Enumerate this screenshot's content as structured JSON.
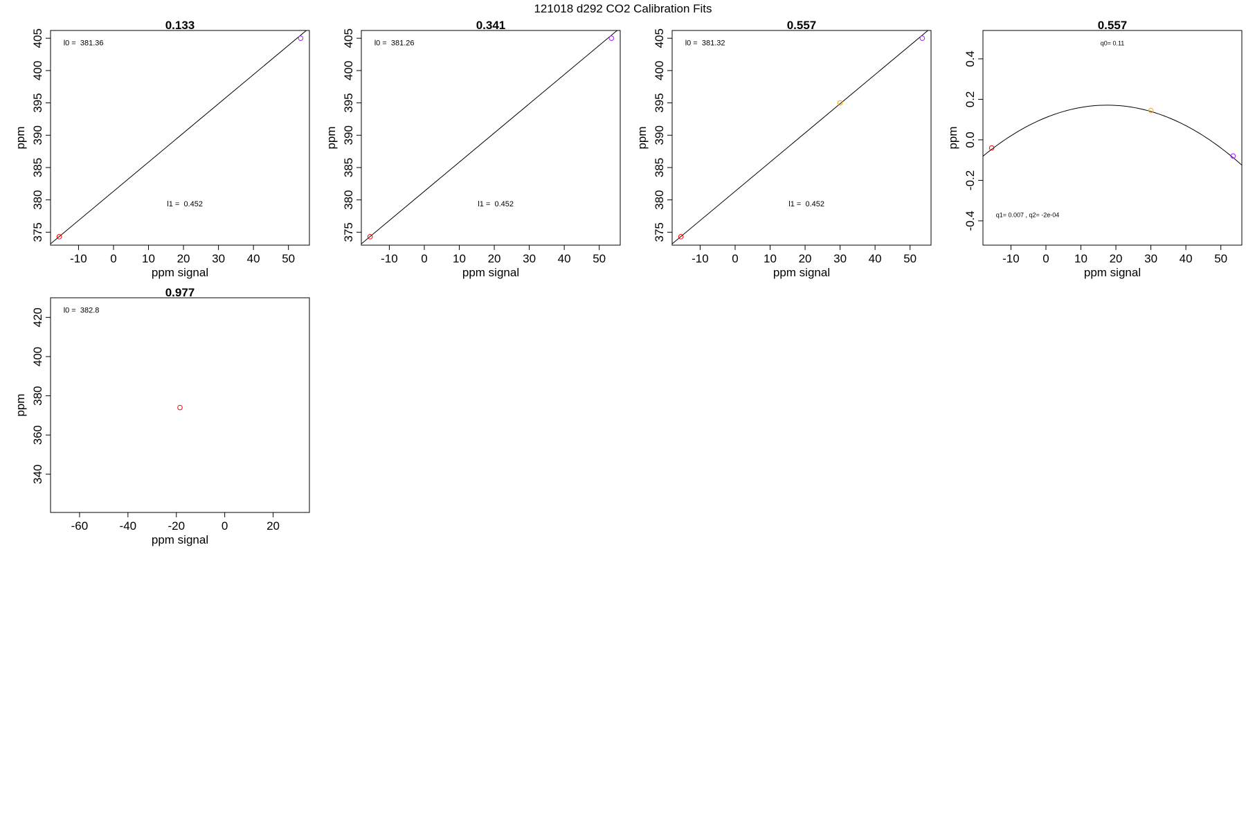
{
  "figure": {
    "title": "121018   d292   CO2 Calibration Fits"
  },
  "chart_data": [
    {
      "type": "scatter",
      "title": "0.133",
      "xlabel": "ppm signal",
      "ylabel": "ppm",
      "xlim": [
        -18,
        56
      ],
      "ylim": [
        373,
        406.2
      ],
      "xticks": [
        -10,
        0,
        10,
        20,
        30,
        40,
        50
      ],
      "yticks": [
        375,
        380,
        385,
        390,
        395,
        400,
        405
      ],
      "grid": false,
      "annotations": [
        "l0 =  381.36",
        "l1 =  0.452"
      ],
      "points": [
        {
          "x": -15.5,
          "y": 374.3,
          "color": "#ff0000"
        },
        {
          "x": 53.5,
          "y": 405.0,
          "color": "#a020f0"
        }
      ],
      "fit": {
        "kind": "linear",
        "x": [
          -18,
          56
        ],
        "y": [
          373.2,
          406.6
        ]
      }
    },
    {
      "type": "scatter",
      "title": "0.341",
      "xlabel": "ppm signal",
      "ylabel": "ppm",
      "xlim": [
        -18,
        56
      ],
      "ylim": [
        373,
        406.2
      ],
      "xticks": [
        -10,
        0,
        10,
        20,
        30,
        40,
        50
      ],
      "yticks": [
        375,
        380,
        385,
        390,
        395,
        400,
        405
      ],
      "grid": false,
      "annotations": [
        "l0 =  381.26",
        "l1 =  0.452"
      ],
      "points": [
        {
          "x": -15.5,
          "y": 374.3,
          "color": "#ff0000"
        },
        {
          "x": 53.5,
          "y": 405.0,
          "color": "#a020f0"
        }
      ],
      "fit": {
        "kind": "linear",
        "x": [
          -18,
          56
        ],
        "y": [
          373.2,
          406.6
        ]
      }
    },
    {
      "type": "scatter",
      "title": "0.557",
      "xlabel": "ppm signal",
      "ylabel": "ppm",
      "xlim": [
        -18,
        56
      ],
      "ylim": [
        373,
        406.2
      ],
      "xticks": [
        -10,
        0,
        10,
        20,
        30,
        40,
        50
      ],
      "yticks": [
        375,
        380,
        385,
        390,
        395,
        400,
        405
      ],
      "grid": false,
      "annotations": [
        "l0 =  381.32",
        "l1 =  0.452"
      ],
      "points": [
        {
          "x": -15.5,
          "y": 374.3,
          "color": "#ff0000"
        },
        {
          "x": 30.0,
          "y": 395.0,
          "color": "#ffa500"
        },
        {
          "x": 53.5,
          "y": 405.0,
          "color": "#a020f0"
        }
      ],
      "fit": {
        "kind": "linear",
        "x": [
          -18,
          56
        ],
        "y": [
          373.2,
          406.6
        ]
      }
    },
    {
      "type": "scatter",
      "title": "0.557",
      "xlabel": "ppm signal",
      "ylabel": "ppm",
      "xlim": [
        -18,
        56
      ],
      "ylim": [
        -0.52,
        0.54
      ],
      "xticks": [
        -10,
        0,
        10,
        20,
        30,
        40,
        50
      ],
      "yticks": [
        -0.4,
        -0.2,
        0.0,
        0.2,
        0.4
      ],
      "ytick_labels": [
        "-0.4",
        "-0.2",
        "0.0",
        "0.2",
        "0.4"
      ],
      "grid": false,
      "annotations": [
        "q0= 0.11",
        "q1= 0.007 , q2= -2e-04"
      ],
      "points": [
        {
          "x": -15.5,
          "y": -0.04,
          "color": "#ff0000"
        },
        {
          "x": 30.0,
          "y": 0.145,
          "color": "#ffa500"
        },
        {
          "x": 53.5,
          "y": -0.08,
          "color": "#a020f0"
        }
      ],
      "fit": {
        "kind": "quadratic",
        "q0": 0.11,
        "q1": 0.007,
        "q2": -0.0002
      }
    },
    {
      "type": "scatter",
      "title": "0.977",
      "xlabel": "ppm signal",
      "ylabel": "ppm",
      "xlim": [
        -72,
        35
      ],
      "ylim": [
        320.5,
        430
      ],
      "xticks": [
        -60,
        -40,
        -20,
        0,
        20
      ],
      "yticks": [
        340,
        360,
        380,
        400,
        420
      ],
      "grid": false,
      "annotations": [
        "l0 =  382.8"
      ],
      "points": [
        {
          "x": -18.5,
          "y": 374.0,
          "color": "#ff0000"
        }
      ],
      "fit": {
        "kind": "none"
      }
    }
  ]
}
